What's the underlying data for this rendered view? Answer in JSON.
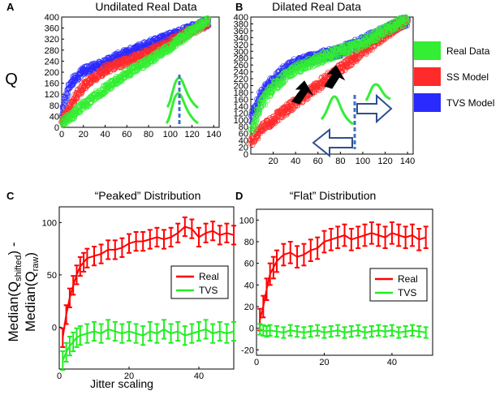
{
  "colors": {
    "real": "#33ee33",
    "ss": "#ff2a2a",
    "tvs": "#2a2aff",
    "line_real": "#ff0000",
    "line_tvs": "#22ee22",
    "marker_blue": "#3f72c0",
    "arrow_outline": "#2e4f8e",
    "arrow_fill": "#000000"
  },
  "legend_top": {
    "items": [
      {
        "label": "Real Data",
        "color": "#33ee33"
      },
      {
        "label": "SS Model",
        "color": "#ff2a2a"
      },
      {
        "label": "TVS Model",
        "color": "#2a2aff"
      }
    ]
  },
  "shared_labels": {
    "q_label": "Q",
    "ylabel_line1_a": "Median(Q",
    "ylabel_line1_sub": "shifted",
    "ylabel_line1_b": ") -",
    "ylabel_line2_a": "Median(Q",
    "ylabel_line2_sub": "raw",
    "ylabel_line2_b": ")",
    "xlabel_bottom": "Jitter scaling"
  },
  "chart_data": [
    {
      "panel": "A",
      "type": "scatter",
      "title": "Undilated Real Data",
      "xlabel": "",
      "ylabel": "Q",
      "xlim": [
        0,
        145
      ],
      "ylim": [
        0,
        400
      ],
      "xticks": [
        0,
        20,
        40,
        60,
        80,
        100,
        120,
        140
      ],
      "yticks": [
        0,
        40,
        80,
        120,
        160,
        200,
        240,
        280,
        320,
        360,
        400
      ],
      "series": [
        {
          "name": "TVS Model",
          "color": "#2a2aff",
          "x": [
            0,
            5,
            10,
            20,
            30,
            40,
            60,
            80,
            100,
            120,
            135
          ],
          "y": [
            40,
            130,
            170,
            205,
            220,
            235,
            270,
            300,
            330,
            360,
            380
          ]
        },
        {
          "name": "SS Model",
          "color": "#ff2a2a",
          "x": [
            0,
            5,
            10,
            20,
            30,
            40,
            60,
            80,
            100,
            120,
            135
          ],
          "y": [
            20,
            50,
            90,
            150,
            180,
            210,
            240,
            270,
            310,
            350,
            380
          ]
        },
        {
          "name": "Real Data",
          "color": "#33ee33",
          "x": [
            0,
            5,
            10,
            20,
            30,
            40,
            60,
            80,
            100,
            120,
            135
          ],
          "y": [
            15,
            30,
            45,
            80,
            110,
            140,
            195,
            240,
            295,
            350,
            390
          ]
        }
      ]
    },
    {
      "panel": "B",
      "type": "scatter",
      "title": "Dilated Real Data",
      "xlabel": "",
      "ylabel": "",
      "xlim": [
        0,
        145
      ],
      "ylim": [
        0,
        400
      ],
      "xticks": [
        20,
        40,
        60,
        80,
        100,
        120,
        140
      ],
      "yticks": [
        0,
        20,
        40,
        60,
        80,
        100,
        120,
        140,
        160,
        180,
        200,
        220,
        240,
        260,
        280,
        300,
        320,
        340,
        360,
        380,
        400
      ],
      "series": [
        {
          "name": "TVS Model",
          "color": "#2a2aff",
          "x": [
            0,
            5,
            10,
            20,
            30,
            40,
            60,
            80,
            100,
            120,
            140
          ],
          "y": [
            100,
            140,
            180,
            215,
            245,
            265,
            285,
            300,
            330,
            360,
            390
          ]
        },
        {
          "name": "SS Model",
          "color": "#ff2a2a",
          "x": [
            0,
            5,
            10,
            20,
            30,
            40,
            60,
            80,
            100,
            120,
            140
          ],
          "y": [
            30,
            55,
            75,
            100,
            125,
            150,
            200,
            250,
            300,
            350,
            395
          ]
        },
        {
          "name": "Real Data",
          "color": "#33ee33",
          "x": [
            0,
            5,
            10,
            20,
            30,
            40,
            60,
            80,
            100,
            120,
            140
          ],
          "y": [
            60,
            110,
            150,
            195,
            225,
            250,
            275,
            300,
            325,
            360,
            395
          ]
        }
      ]
    },
    {
      "panel": "C",
      "type": "line",
      "title": "“Peaked” Distribution",
      "xlabel": "Jitter scaling",
      "ylabel": "Median(Q_shifted) - Median(Q_raw)",
      "xlim": [
        0,
        50
      ],
      "ylim": [
        -40,
        115
      ],
      "xticks": [
        0,
        20,
        40
      ],
      "yticks": [
        0,
        50,
        100
      ],
      "legend": [
        "Real",
        "TVS"
      ],
      "series": [
        {
          "name": "Real",
          "color": "#ff0000",
          "x": [
            1,
            2,
            3,
            4,
            5,
            6,
            7,
            8,
            10,
            12,
            14,
            16,
            18,
            20,
            22,
            24,
            26,
            28,
            30,
            32,
            34,
            36,
            38,
            40,
            42,
            44,
            46,
            48,
            50
          ],
          "y": [
            -10,
            12,
            28,
            40,
            50,
            58,
            62,
            66,
            68,
            70,
            74,
            74,
            76,
            80,
            82,
            82,
            84,
            86,
            84,
            86,
            90,
            96,
            94,
            86,
            90,
            92,
            88,
            90,
            88
          ],
          "err": 9
        },
        {
          "name": "TVS",
          "color": "#22ee22",
          "x": [
            1,
            2,
            3,
            4,
            5,
            6,
            8,
            10,
            12,
            14,
            16,
            18,
            20,
            22,
            24,
            26,
            28,
            30,
            32,
            34,
            36,
            38,
            40,
            42,
            44,
            46,
            48,
            50
          ],
          "y": [
            -32,
            -24,
            -18,
            -14,
            -10,
            -8,
            -6,
            -4,
            -6,
            -2,
            -4,
            -6,
            -4,
            -6,
            -8,
            -4,
            -6,
            -2,
            -6,
            -4,
            -8,
            -6,
            -4,
            -2,
            -6,
            -4,
            -6,
            -4
          ],
          "err": 9
        }
      ]
    },
    {
      "panel": "D",
      "type": "line",
      "title": "“Flat” Distribution",
      "xlabel": "",
      "ylabel": "",
      "xlim": [
        0,
        52
      ],
      "ylim": [
        -25,
        110
      ],
      "xticks": [
        0,
        20,
        40
      ],
      "yticks": [
        -20,
        0,
        20,
        40,
        60,
        80,
        100
      ],
      "legend": [
        "Real",
        "TVS"
      ],
      "series": [
        {
          "name": "Real",
          "color": "#ff0000",
          "x": [
            1,
            2,
            3,
            4,
            5,
            6,
            8,
            10,
            12,
            14,
            16,
            18,
            20,
            22,
            24,
            26,
            28,
            30,
            32,
            34,
            36,
            38,
            40,
            42,
            44,
            46,
            48,
            50
          ],
          "y": [
            8,
            20,
            36,
            50,
            56,
            62,
            68,
            70,
            66,
            68,
            72,
            74,
            80,
            82,
            84,
            86,
            82,
            84,
            86,
            88,
            86,
            84,
            88,
            86,
            84,
            86,
            82,
            84
          ],
          "err": 10
        },
        {
          "name": "TVS",
          "color": "#22ee22",
          "x": [
            1,
            2,
            3,
            4,
            6,
            8,
            10,
            12,
            14,
            16,
            18,
            20,
            22,
            24,
            26,
            28,
            30,
            32,
            34,
            36,
            38,
            40,
            42,
            44,
            46,
            48,
            50
          ],
          "y": [
            -1,
            -2,
            -3,
            -2,
            -3,
            -4,
            -2,
            -3,
            -4,
            -3,
            -2,
            -4,
            -3,
            -2,
            -4,
            -3,
            -2,
            -4,
            -3,
            -2,
            -3,
            -2,
            -4,
            -3,
            -2,
            -3,
            -4
          ],
          "err": 5
        }
      ]
    }
  ]
}
